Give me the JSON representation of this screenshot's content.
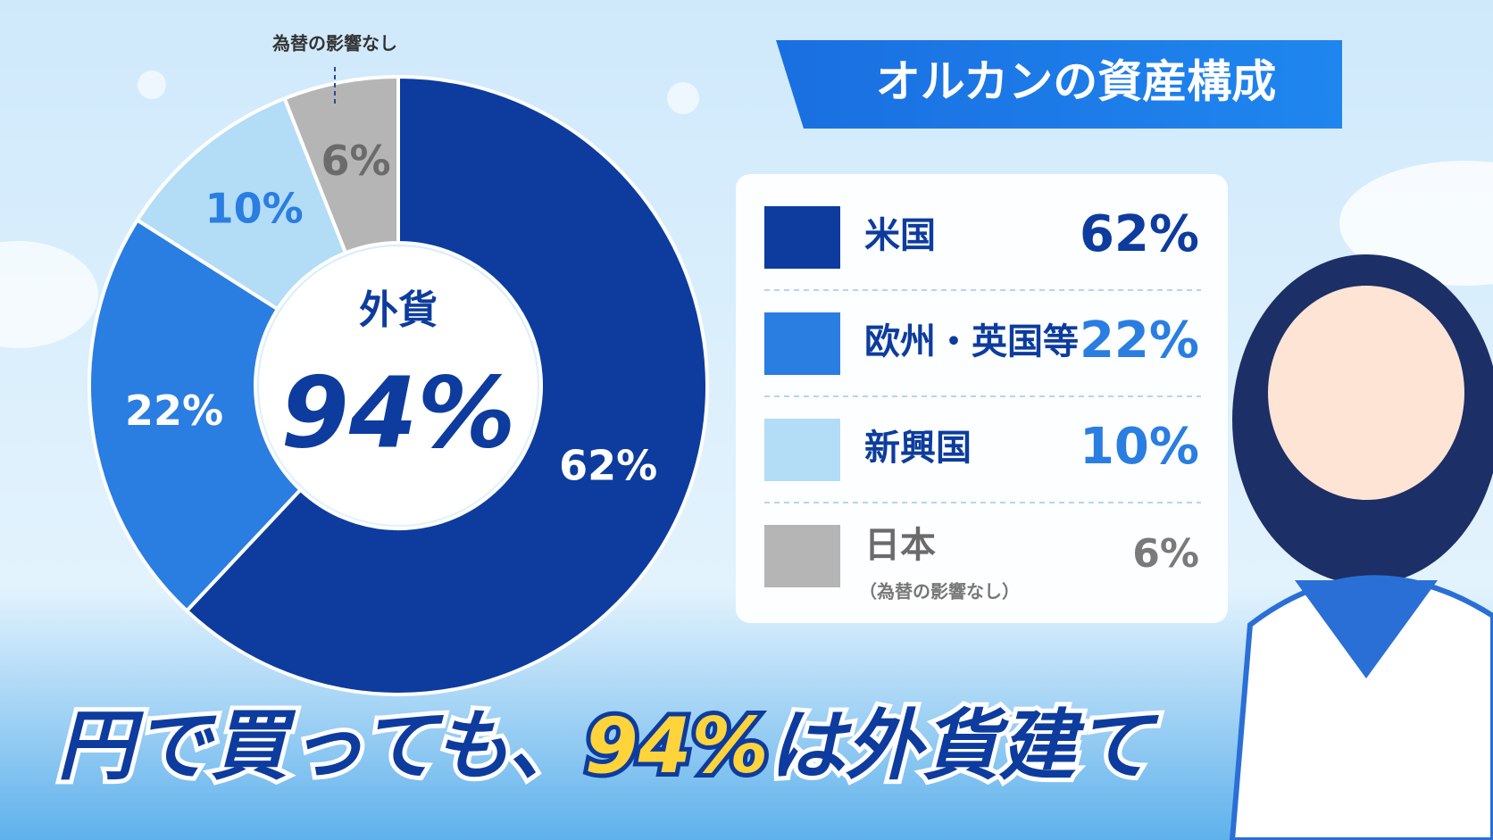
{
  "chart_data": {
    "type": "pie",
    "donut": true,
    "title": "オルカンの資産構成",
    "categories": [
      "米国",
      "欧州・英国等",
      "新興国",
      "日本"
    ],
    "values": [
      62,
      22,
      10,
      6
    ],
    "value_labels": [
      "62%",
      "22%",
      "10%",
      "6%"
    ],
    "colors": [
      "#0d3c9e",
      "#2a7de1",
      "#b3dcf7",
      "#b5b5b5"
    ],
    "label_colors": [
      "#ffffff",
      "#ffffff",
      "#2a7de1",
      "#6b6b6b"
    ],
    "annotation": "為替の影響なし",
    "legend_note": "（為替の影響なし）",
    "center_label": "外貨",
    "center_value": 94,
    "center_value_label": "94%",
    "caption": [
      "円で買っても、",
      "94%",
      "は外貨建て"
    ]
  }
}
